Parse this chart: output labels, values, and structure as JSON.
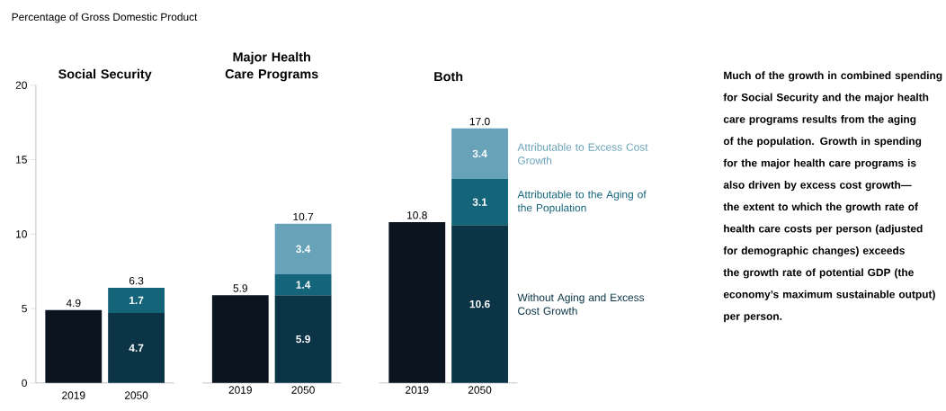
{
  "chart_data": [
    {
      "type": "bar",
      "stacked": true,
      "title": "Social Security",
      "ylabel": "Percentage of Gross Domestic Product",
      "categories": [
        "2019",
        "2050"
      ],
      "ylim": [
        0,
        20
      ],
      "yticks": [
        0,
        5,
        10,
        15,
        20
      ],
      "totals": [
        "4.9",
        "6.3"
      ],
      "series": [
        {
          "colors": [
            "#0b1520",
            "#0b3547"
          ],
          "values": [
            4.9,
            4.7
          ],
          "value_labels": [
            null,
            "4.7"
          ]
        },
        {
          "color": "#15657a",
          "values": [
            null,
            1.7
          ],
          "value_labels": [
            null,
            "1.7"
          ]
        }
      ]
    },
    {
      "type": "bar",
      "stacked": true,
      "title": "Major Health Care Programs",
      "categories": [
        "2019",
        "2050"
      ],
      "ylim": [
        0,
        20
      ],
      "tick_labels": "x",
      "totals": [
        "5.9",
        "10.7"
      ],
      "series": [
        {
          "colors": [
            "#0b1520",
            "#0b3547"
          ],
          "values": [
            5.9,
            5.9
          ],
          "value_labels": [
            null,
            "5.9"
          ]
        },
        {
          "color": "#15657a",
          "values": [
            null,
            1.4
          ],
          "value_labels": [
            null,
            "1.4"
          ]
        },
        {
          "color": "#67a2b8",
          "values": [
            null,
            3.4
          ],
          "value_labels": [
            null,
            "3.4"
          ]
        }
      ]
    },
    {
      "type": "bar",
      "stacked": true,
      "title": "Both",
      "categories": [
        "2019",
        "2050"
      ],
      "ylim": [
        0,
        20
      ],
      "tick_labels": "x",
      "totals": [
        "10.8",
        "17.0"
      ],
      "series": [
        {
          "name": "Without Aging and Excess Cost Growth",
          "colors": [
            "#0b1520",
            "#0b3547"
          ],
          "values": [
            10.8,
            10.6
          ],
          "value_labels": [
            null,
            "10.6"
          ]
        },
        {
          "name": "Attributable to the Aging of the Population",
          "color": "#15657a",
          "values": [
            null,
            3.1
          ],
          "value_labels": [
            null,
            "3.1"
          ]
        },
        {
          "name": "Attributable to Excess Cost Growth",
          "color": "#67a2b8",
          "values": [
            null,
            3.4
          ],
          "value_labels": [
            null,
            "3.4"
          ]
        }
      ]
    },
    {
      "type": "other",
      "annotations": [
        "Much of the growth in combined spending for Social Security and the major health care programs results from the aging of the population. Growth in spending for the major health care programs is also driven by excess cost growth—the extent to which the growth rate of health care costs per person (adjusted for demographic changes) exceeds the growth rate of potential GDP (the economy’s maximum sustainable output) per person."
      ]
    }
  ]
}
